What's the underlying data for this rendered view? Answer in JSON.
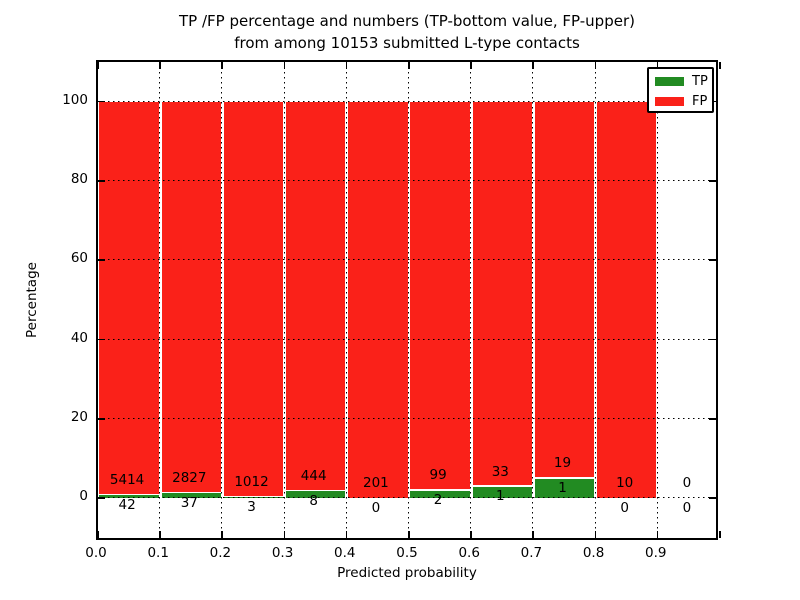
{
  "chart_data": {
    "type": "bar",
    "stacked": true,
    "title_line1": "TP /FP percentage and numbers (TP-bottom value, FP-upper)",
    "title_line2": "from among 10153 submitted L-type contacts",
    "xlabel": "Predicted probability",
    "ylabel": "Percentage",
    "x_tick_labels": [
      "0.0",
      "0.1",
      "0.2",
      "0.3",
      "0.4",
      "0.5",
      "0.6",
      "0.7",
      "0.8",
      "0.9"
    ],
    "y_tick_values": [
      0,
      20,
      40,
      60,
      80,
      100
    ],
    "xlim": [
      0.0,
      1.0
    ],
    "ylim": [
      -11,
      110
    ],
    "grid": {
      "style": "dotted",
      "color": "#000000",
      "above_bars": true
    },
    "colors": {
      "tp": "#228b22",
      "fp": "#fa2119",
      "bar_edge": "#ffffff"
    },
    "legend": {
      "position": "upper-right",
      "entries": [
        {
          "label": "TP",
          "color": "#228b22"
        },
        {
          "label": "FP",
          "color": "#fa2119"
        }
      ]
    },
    "note": "Each bin stacks TP% (green, bottom) and FP% (red, top) to 100%; numeric labels show raw counts: FP above the green top, TP below",
    "bins": [
      {
        "range": [
          0.0,
          0.1
        ],
        "tp": 42,
        "fp": 5414
      },
      {
        "range": [
          0.1,
          0.2
        ],
        "tp": 37,
        "fp": 2827
      },
      {
        "range": [
          0.2,
          0.3
        ],
        "tp": 3,
        "fp": 1012
      },
      {
        "range": [
          0.3,
          0.4
        ],
        "tp": 8,
        "fp": 444
      },
      {
        "range": [
          0.4,
          0.5
        ],
        "tp": 0,
        "fp": 201
      },
      {
        "range": [
          0.5,
          0.6
        ],
        "tp": 2,
        "fp": 99
      },
      {
        "range": [
          0.6,
          0.7
        ],
        "tp": 1,
        "fp": 33
      },
      {
        "range": [
          0.7,
          0.8
        ],
        "tp": 1,
        "fp": 19
      },
      {
        "range": [
          0.8,
          0.9
        ],
        "tp": 0,
        "fp": 10
      },
      {
        "range": [
          0.9,
          1.0
        ],
        "tp": 0,
        "fp": 0
      }
    ]
  }
}
